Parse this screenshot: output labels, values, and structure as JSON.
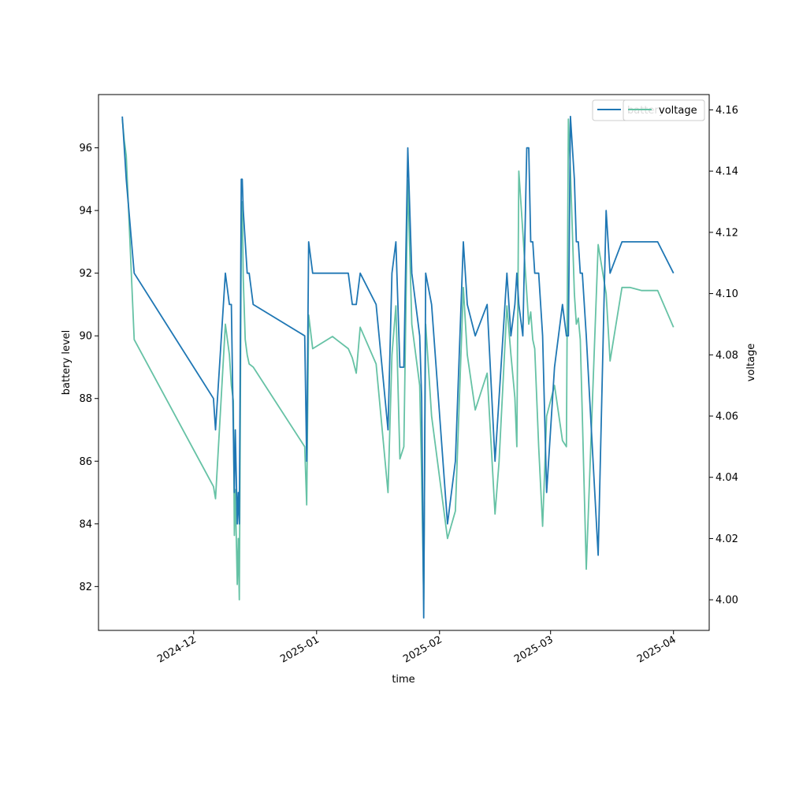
{
  "chart_data": {
    "type": "line",
    "title": "",
    "xlabel": "time",
    "ylabel": "battery level",
    "y2label": "voltage",
    "xlim": [
      "2024-11-07",
      "2025-04-10"
    ],
    "ylim": [
      80.6,
      97.7
    ],
    "y2lim": [
      3.99,
      4.165
    ],
    "x_ticks": [
      "2024-12",
      "2025-01",
      "2025-02",
      "2025-03",
      "2025-04"
    ],
    "y_ticks": [
      82,
      84,
      86,
      88,
      90,
      92,
      94,
      96
    ],
    "y2_ticks": [
      4.0,
      4.02,
      4.04,
      4.06,
      4.08,
      4.1,
      4.12,
      4.14,
      4.16
    ],
    "legend": {
      "position": "top-right",
      "entries": [
        "battery",
        "voltage"
      ]
    },
    "grid": false,
    "series": [
      {
        "name": "battery",
        "axis": "left",
        "color": "#1f77b4",
        "x": [
          "2024-11-13",
          "2024-11-13T12:00",
          "2024-11-14",
          "2024-11-16",
          "2024-12-06",
          "2024-12-06T12:00",
          "2024-12-09",
          "2024-12-10",
          "2024-12-10T12:00",
          "2024-12-11",
          "2024-12-11T06:00",
          "2024-12-11T12:00",
          "2024-12-12",
          "2024-12-12T06:00",
          "2024-12-12T12:00",
          "2024-12-13",
          "2024-12-13T06:00",
          "2024-12-13T12:00",
          "2024-12-14",
          "2024-12-14T12:00",
          "2024-12-15",
          "2024-12-16",
          "2024-12-29",
          "2024-12-29T12:00",
          "2024-12-30",
          "2024-12-31",
          "2025-01-05",
          "2025-01-06",
          "2025-01-09",
          "2025-01-10",
          "2025-01-11",
          "2025-01-12",
          "2025-01-16",
          "2025-01-19",
          "2025-01-20",
          "2025-01-21",
          "2025-01-22",
          "2025-01-23",
          "2025-01-24",
          "2025-01-25",
          "2025-01-26",
          "2025-01-27",
          "2025-01-27T12:00",
          "2025-01-28",
          "2025-01-28T12:00",
          "2025-01-30",
          "2025-02-03",
          "2025-02-05",
          "2025-02-07",
          "2025-02-08",
          "2025-02-10",
          "2025-02-13",
          "2025-02-15",
          "2025-02-16",
          "2025-02-18",
          "2025-02-19",
          "2025-02-20",
          "2025-02-20T12:00",
          "2025-02-21",
          "2025-02-22",
          "2025-02-23",
          "2025-02-23T12:00",
          "2025-02-24",
          "2025-02-24T12:00",
          "2025-02-25",
          "2025-02-26",
          "2025-02-27",
          "2025-02-28",
          "2025-03-02",
          "2025-03-04",
          "2025-03-05",
          "2025-03-05T12:00",
          "2025-03-06",
          "2025-03-07",
          "2025-03-07T12:00",
          "2025-03-08",
          "2025-03-08T12:00",
          "2025-03-09",
          "2025-03-10",
          "2025-03-13",
          "2025-03-15",
          "2025-03-16",
          "2025-03-19",
          "2025-03-21",
          "2025-03-24",
          "2025-03-28",
          "2025-04-01"
        ],
        "y": [
          97,
          96,
          95,
          92,
          88,
          87,
          92,
          91,
          91,
          87,
          85,
          87,
          84,
          85,
          84,
          95,
          95,
          94,
          93,
          92,
          92,
          91,
          90,
          86,
          93,
          92,
          92,
          92,
          92,
          91,
          91,
          92,
          91,
          87,
          92,
          93,
          89,
          89,
          96,
          92,
          91,
          90,
          88,
          81,
          92,
          91,
          84,
          86,
          93,
          91,
          90,
          91,
          86,
          88,
          92,
          90,
          91,
          92,
          91,
          90,
          96,
          96,
          93,
          93,
          92,
          92,
          90,
          85,
          89,
          91,
          90,
          90,
          97,
          95,
          93,
          93,
          92,
          92,
          90,
          83,
          94,
          92,
          93,
          93,
          93,
          93,
          92
        ]
      },
      {
        "name": "voltage",
        "axis": "right",
        "color": "#66c2a5",
        "x": [
          "2024-11-13",
          "2024-11-13T12:00",
          "2024-11-14",
          "2024-11-16",
          "2024-12-06",
          "2024-12-06T12:00",
          "2024-12-09",
          "2024-12-10",
          "2024-12-10T12:00",
          "2024-12-11",
          "2024-12-11T06:00",
          "2024-12-11T12:00",
          "2024-12-12",
          "2024-12-12T06:00",
          "2024-12-12T12:00",
          "2024-12-13",
          "2024-12-13T06:00",
          "2024-12-13T12:00",
          "2024-12-14",
          "2024-12-14T12:00",
          "2024-12-15",
          "2024-12-16",
          "2024-12-29",
          "2024-12-29T12:00",
          "2024-12-30",
          "2024-12-31",
          "2025-01-05",
          "2025-01-06",
          "2025-01-09",
          "2025-01-10",
          "2025-01-11",
          "2025-01-12",
          "2025-01-16",
          "2025-01-19",
          "2025-01-20",
          "2025-01-21",
          "2025-01-22",
          "2025-01-23",
          "2025-01-24",
          "2025-01-25",
          "2025-01-26",
          "2025-01-27",
          "2025-01-27T12:00",
          "2025-01-28",
          "2025-01-28T12:00",
          "2025-01-30",
          "2025-02-03",
          "2025-02-05",
          "2025-02-07",
          "2025-02-08",
          "2025-02-10",
          "2025-02-13",
          "2025-02-15",
          "2025-02-16",
          "2025-02-18",
          "2025-02-19",
          "2025-02-20",
          "2025-02-20T12:00",
          "2025-02-21",
          "2025-02-22",
          "2025-02-23",
          "2025-02-23T12:00",
          "2025-02-24",
          "2025-02-24T12:00",
          "2025-02-25",
          "2025-02-26",
          "2025-02-27",
          "2025-02-28",
          "2025-03-02",
          "2025-03-04",
          "2025-03-05",
          "2025-03-05T12:00",
          "2025-03-06",
          "2025-03-07",
          "2025-03-07T12:00",
          "2025-03-08",
          "2025-03-08T12:00",
          "2025-03-09",
          "2025-03-10",
          "2025-03-13",
          "2025-03-15",
          "2025-03-16",
          "2025-03-19",
          "2025-03-21",
          "2025-03-24",
          "2025-03-28",
          "2025-04-01"
        ],
        "y": [
          4.157,
          4.15,
          4.145,
          4.085,
          4.037,
          4.033,
          4.09,
          4.08,
          4.07,
          4.065,
          4.021,
          4.036,
          4.005,
          4.02,
          4.0,
          4.12,
          4.13,
          4.105,
          4.085,
          4.08,
          4.077,
          4.076,
          4.05,
          4.031,
          4.093,
          4.082,
          4.086,
          4.085,
          4.082,
          4.079,
          4.074,
          4.089,
          4.077,
          4.035,
          4.08,
          4.096,
          4.046,
          4.05,
          4.137,
          4.09,
          4.08,
          4.07,
          4.04,
          4.0,
          4.09,
          4.06,
          4.02,
          4.029,
          4.102,
          4.08,
          4.062,
          4.074,
          4.028,
          4.045,
          4.096,
          4.08,
          4.066,
          4.05,
          4.14,
          4.12,
          4.1,
          4.09,
          4.094,
          4.085,
          4.082,
          4.05,
          4.024,
          4.06,
          4.07,
          4.052,
          4.05,
          4.157,
          4.14,
          4.1,
          4.09,
          4.092,
          4.085,
          4.06,
          4.01,
          4.116,
          4.1,
          4.078,
          4.102,
          4.102,
          4.101,
          4.101,
          4.089
        ]
      }
    ]
  }
}
